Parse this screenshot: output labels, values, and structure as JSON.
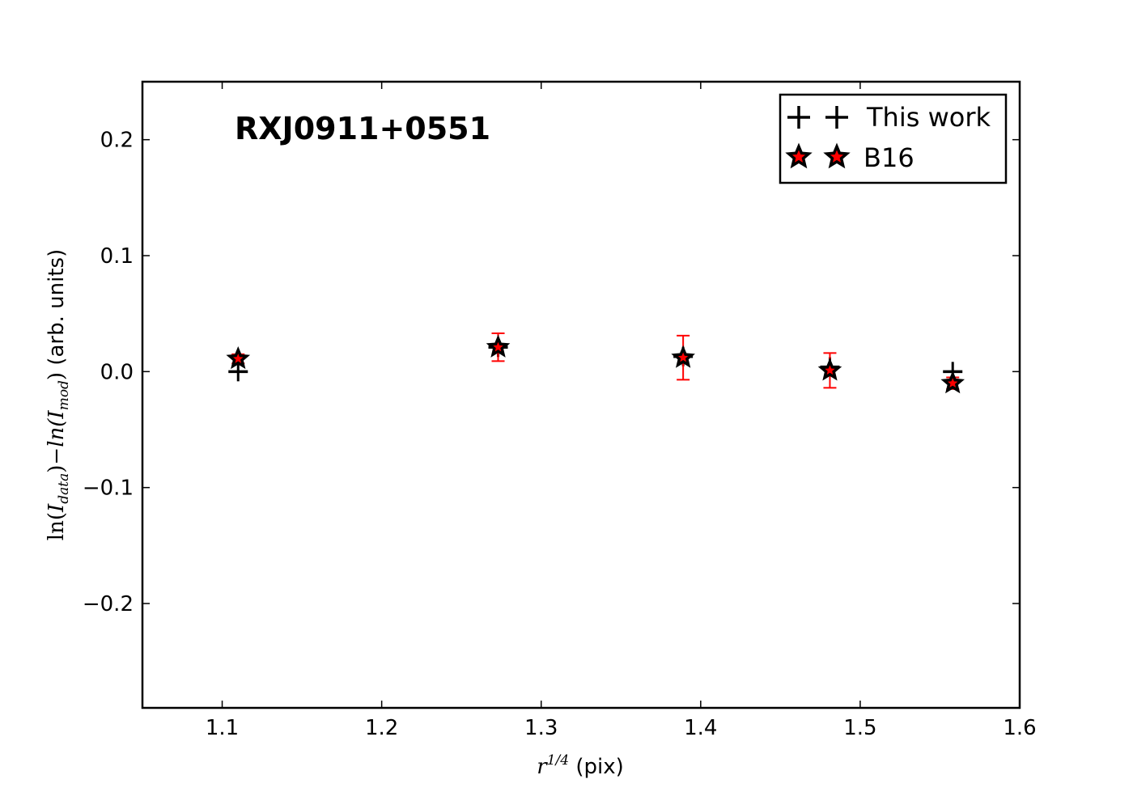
{
  "chart_data": {
    "type": "scatter",
    "annotation": "RXJ0911+0551",
    "xlabel": {
      "math_base": "r",
      "math_sup": "1/4",
      "text": " (pix)"
    },
    "ylabel": {
      "ln1": "ln(",
      "var1": "I",
      "sub1": "data",
      "close1": ")",
      "minus": "−",
      "ln2": "ln(",
      "var2": "I",
      "sub2": "mod",
      "close2": ")",
      "text": " (arb. units)"
    },
    "xlim": [
      1.05,
      1.6
    ],
    "ylim": [
      -0.29,
      0.25
    ],
    "xticks": [
      {
        "value": 1.1,
        "label": "1.1"
      },
      {
        "value": 1.2,
        "label": "1.2"
      },
      {
        "value": 1.3,
        "label": "1.3"
      },
      {
        "value": 1.4,
        "label": "1.4"
      },
      {
        "value": 1.5,
        "label": "1.5"
      },
      {
        "value": 1.6,
        "label": "1.6"
      }
    ],
    "yticks": [
      {
        "value": 0.2,
        "label": "0.2"
      },
      {
        "value": 0.1,
        "label": "0.1"
      },
      {
        "value": 0.0,
        "label": "0.0"
      },
      {
        "value": -0.1,
        "label": "−0.1"
      },
      {
        "value": -0.2,
        "label": "−0.2"
      }
    ],
    "grid": false,
    "legend_position": "top-right",
    "series": [
      {
        "name": "This work",
        "marker": "plus",
        "color": "#000000",
        "points": [
          {
            "x": 1.11,
            "y": 0.0,
            "err": 0.0
          },
          {
            "x": 1.273,
            "y": 0.021,
            "err": 0.0
          },
          {
            "x": 1.389,
            "y": 0.013,
            "err": 0.0
          },
          {
            "x": 1.481,
            "y": 0.004,
            "err": 0.0
          },
          {
            "x": 1.558,
            "y": 0.0,
            "err": 0.0
          }
        ]
      },
      {
        "name": "B16",
        "marker": "star",
        "color": "#ff0000",
        "edge_color": "#000000",
        "points": [
          {
            "x": 1.11,
            "y": 0.011,
            "err": 0.004
          },
          {
            "x": 1.273,
            "y": 0.021,
            "err": 0.012
          },
          {
            "x": 1.389,
            "y": 0.012,
            "err": 0.019
          },
          {
            "x": 1.481,
            "y": 0.001,
            "err": 0.015
          },
          {
            "x": 1.558,
            "y": -0.01,
            "err": 0.005
          }
        ]
      }
    ]
  }
}
